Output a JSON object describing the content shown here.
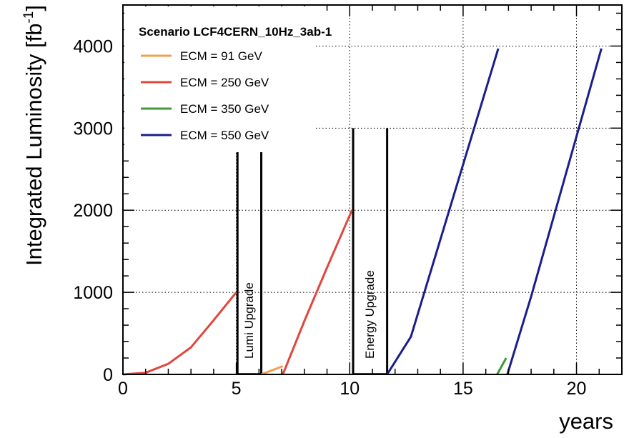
{
  "chart_data": {
    "type": "line",
    "title": "Scenario LCF4CERN_10Hz_3ab-1",
    "xlabel": "years",
    "ylabel_main": "Integrated Luminosity  [fb",
    "ylabel_exp": "-1",
    "ylabel_close": "]",
    "xlim": [
      0,
      22
    ],
    "ylim": [
      0,
      4500
    ],
    "xticks": [
      0,
      5,
      10,
      15,
      20
    ],
    "yticks": [
      0,
      1000,
      2000,
      3000,
      4000
    ],
    "grid": "dotted",
    "legend_position": "top-left",
    "series": [
      {
        "name": "ECM = 91 GeV",
        "color": "#f0a050",
        "segments": [
          [
            [
              6.1,
              0
            ],
            [
              7.05,
              100
            ]
          ]
        ]
      },
      {
        "name": "ECM = 250 GeV",
        "color": "#e0463c",
        "segments": [
          [
            [
              0,
              0
            ],
            [
              1,
              20
            ],
            [
              2,
              130
            ],
            [
              3,
              330
            ],
            [
              4,
              660
            ],
            [
              5,
              1000
            ]
          ],
          [
            [
              7.05,
              0
            ],
            [
              8,
              650
            ],
            [
              9,
              1300
            ],
            [
              10.1,
              2000
            ]
          ]
        ]
      },
      {
        "name": "ECM = 350 GeV",
        "color": "#3f9a3a",
        "segments": [
          [
            [
              16.5,
              0
            ],
            [
              16.9,
              200
            ]
          ]
        ]
      },
      {
        "name": "ECM = 550 GeV",
        "color": "#1a1e8c",
        "segments": [
          [
            [
              11.65,
              0
            ],
            [
              12.7,
              460
            ],
            [
              16.55,
              3970
            ]
          ],
          [
            [
              16.95,
              0
            ],
            [
              18,
              950
            ],
            [
              21.1,
              3970
            ]
          ]
        ]
      }
    ],
    "annotations": [
      {
        "label": "Lumi Upgrade",
        "x_start": 5.05,
        "x_end": 6.1,
        "y_top": 2750
      },
      {
        "label": "Energy Upgrade",
        "x_start": 10.15,
        "x_end": 11.65,
        "y_top": 3000
      }
    ]
  }
}
